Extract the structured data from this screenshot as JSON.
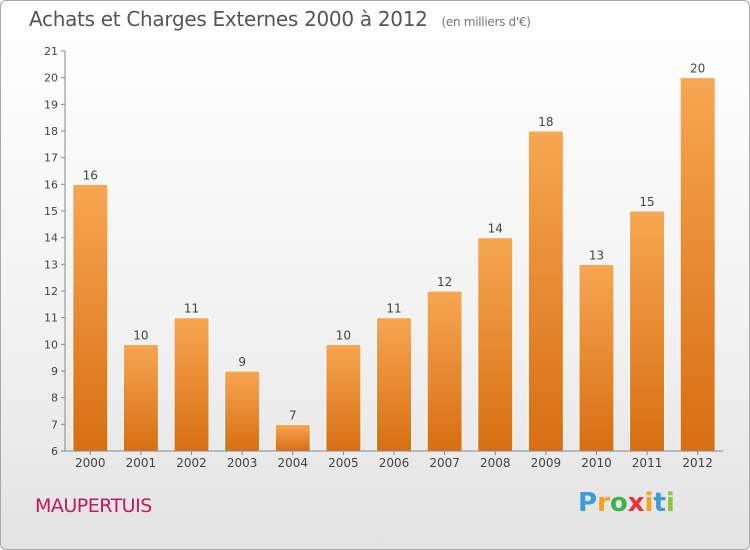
{
  "title": "Achats et Charges Externes 2000 à 2012",
  "subtitle": "(en milliers d'€)",
  "commune": "MAUPERTUIS",
  "logo": {
    "letters": [
      "P",
      "r",
      "o",
      "x",
      "i",
      "t",
      "i"
    ],
    "colors": [
      "#3d9bd6",
      "#f7a11a",
      "#3db54a",
      "#e8323c",
      "#f7a11a",
      "#3d9bd6",
      "#8cc63f"
    ]
  },
  "colors": {
    "bar_top": "#f7a652",
    "bar_bottom": "#d76e12",
    "title": "#555555",
    "commune": "#c2185b"
  },
  "chart_data": {
    "type": "bar",
    "categories": [
      "2000",
      "2001",
      "2002",
      "2003",
      "2004",
      "2005",
      "2006",
      "2007",
      "2008",
      "2009",
      "2010",
      "2011",
      "2012"
    ],
    "values": [
      16,
      10,
      11,
      9,
      7,
      10,
      11,
      12,
      14,
      18,
      13,
      15,
      20
    ],
    "ylim": [
      6,
      21
    ],
    "yticks": [
      6,
      7,
      8,
      9,
      10,
      11,
      12,
      13,
      14,
      15,
      16,
      17,
      18,
      19,
      20,
      21
    ],
    "grid": false,
    "data_labels": true
  }
}
